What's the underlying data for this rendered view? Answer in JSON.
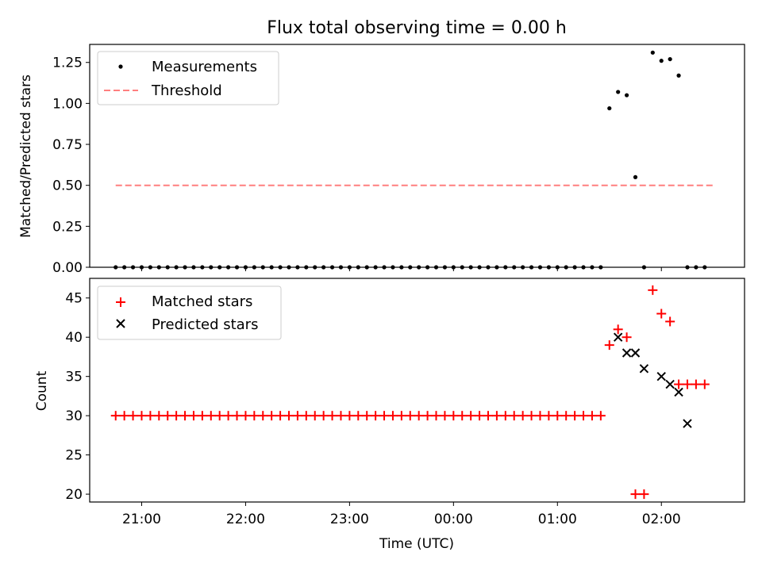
{
  "figure": {
    "title": "Flux total observing time = 0.00 h"
  },
  "chart_data": [
    {
      "type": "scatter",
      "panel": "top",
      "ylabel": "Matched/Predicted stars",
      "xlabel": "",
      "ylim": [
        0,
        1.36
      ],
      "yticks": [
        0.0,
        0.25,
        0.5,
        0.75,
        1.0,
        1.25
      ],
      "ytick_labels": [
        "0.00",
        "0.25",
        "0.50",
        "0.75",
        "1.00",
        "1.25"
      ],
      "grid": false,
      "legend_position": "top-left",
      "series": [
        {
          "name": "Measurements",
          "marker": "dot",
          "color": "#000000",
          "x_start": "20:45",
          "x_step_minutes": 5,
          "y": [
            0,
            0,
            0,
            0,
            0,
            0,
            0,
            0,
            0,
            0,
            0,
            0,
            0,
            0,
            0,
            0,
            0,
            0,
            0,
            0,
            0,
            0,
            0,
            0,
            0,
            0,
            0,
            0,
            0,
            0,
            0,
            0,
            0,
            0,
            0,
            0,
            0,
            0,
            0,
            0,
            0,
            0,
            0,
            0,
            0,
            0,
            0,
            0,
            0,
            0,
            0,
            0,
            0,
            0,
            0,
            0,
            0,
            0.97,
            1.07,
            1.05,
            0.55,
            0,
            1.31,
            1.26,
            1.27,
            1.17,
            0,
            0,
            0
          ]
        },
        {
          "name": "Threshold",
          "style": "dashed",
          "color": "#ff7f7f",
          "x": [
            "20:45",
            "02:30"
          ],
          "y": [
            0.5,
            0.5
          ]
        }
      ]
    },
    {
      "type": "scatter",
      "panel": "bottom",
      "ylabel": "Count",
      "xlabel": "Time (UTC)",
      "ylim": [
        19,
        47.5
      ],
      "yticks": [
        20,
        25,
        30,
        35,
        40,
        45
      ],
      "xticks": [
        "21:00",
        "22:00",
        "23:00",
        "00:00",
        "01:00",
        "02:00"
      ],
      "xlim": [
        "20:30",
        "02:48"
      ],
      "grid": false,
      "legend_position": "top-left",
      "series": [
        {
          "name": "Matched stars",
          "marker": "plus",
          "color": "#ff0000",
          "x_start": "20:45",
          "x_step_minutes": 5,
          "y": [
            30,
            30,
            30,
            30,
            30,
            30,
            30,
            30,
            30,
            30,
            30,
            30,
            30,
            30,
            30,
            30,
            30,
            30,
            30,
            30,
            30,
            30,
            30,
            30,
            30,
            30,
            30,
            30,
            30,
            30,
            30,
            30,
            30,
            30,
            30,
            30,
            30,
            30,
            30,
            30,
            30,
            30,
            30,
            30,
            30,
            30,
            30,
            30,
            30,
            30,
            30,
            30,
            30,
            30,
            30,
            30,
            30,
            39,
            41,
            40,
            20,
            20,
            46,
            43,
            42,
            34,
            34,
            34,
            34
          ]
        },
        {
          "name": "Predicted stars",
          "marker": "x",
          "color": "#000000",
          "x": [
            "01:35",
            "01:40",
            "01:45",
            "01:50",
            "02:00",
            "02:05",
            "02:10",
            "02:15"
          ],
          "y": [
            40,
            38,
            38,
            36,
            35,
            34,
            33,
            29
          ]
        }
      ]
    }
  ]
}
